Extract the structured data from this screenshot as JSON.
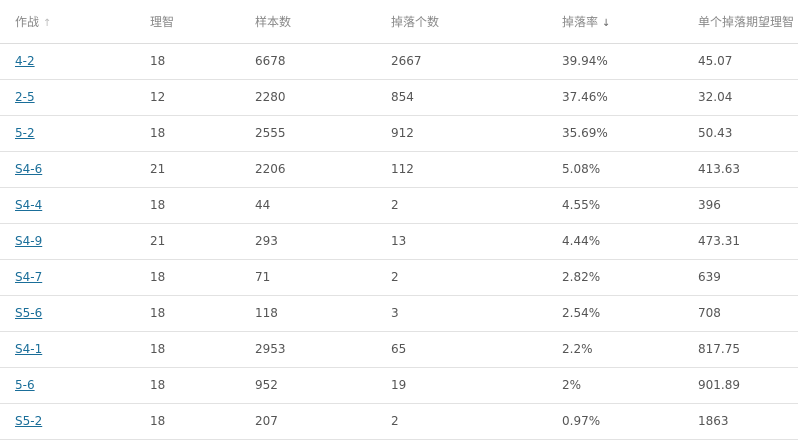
{
  "columns": [
    {
      "label": "作战",
      "sort": "asc",
      "sort_icon": "↑"
    },
    {
      "label": "理智"
    },
    {
      "label": "样本数"
    },
    {
      "label": "掉落个数"
    },
    {
      "label": "掉落率",
      "sort": "desc",
      "sort_icon": "↓"
    },
    {
      "label": "单个掉落期望理智"
    }
  ],
  "rows": [
    [
      "4-2",
      "18",
      "6678",
      "2667",
      "39.94%",
      "45.07"
    ],
    [
      "2-5",
      "12",
      "2280",
      "854",
      "37.46%",
      "32.04"
    ],
    [
      "5-2",
      "18",
      "2555",
      "912",
      "35.69%",
      "50.43"
    ],
    [
      "S4-6",
      "21",
      "2206",
      "112",
      "5.08%",
      "413.63"
    ],
    [
      "S4-4",
      "18",
      "44",
      "2",
      "4.55%",
      "396"
    ],
    [
      "S4-9",
      "21",
      "293",
      "13",
      "4.44%",
      "473.31"
    ],
    [
      "S4-7",
      "18",
      "71",
      "2",
      "2.82%",
      "639"
    ],
    [
      "S5-6",
      "18",
      "118",
      "3",
      "2.54%",
      "708"
    ],
    [
      "S4-1",
      "18",
      "2953",
      "65",
      "2.2%",
      "817.75"
    ],
    [
      "5-6",
      "18",
      "952",
      "19",
      "2%",
      "901.89"
    ],
    [
      "S5-2",
      "18",
      "207",
      "2",
      "0.97%",
      "1863"
    ]
  ]
}
